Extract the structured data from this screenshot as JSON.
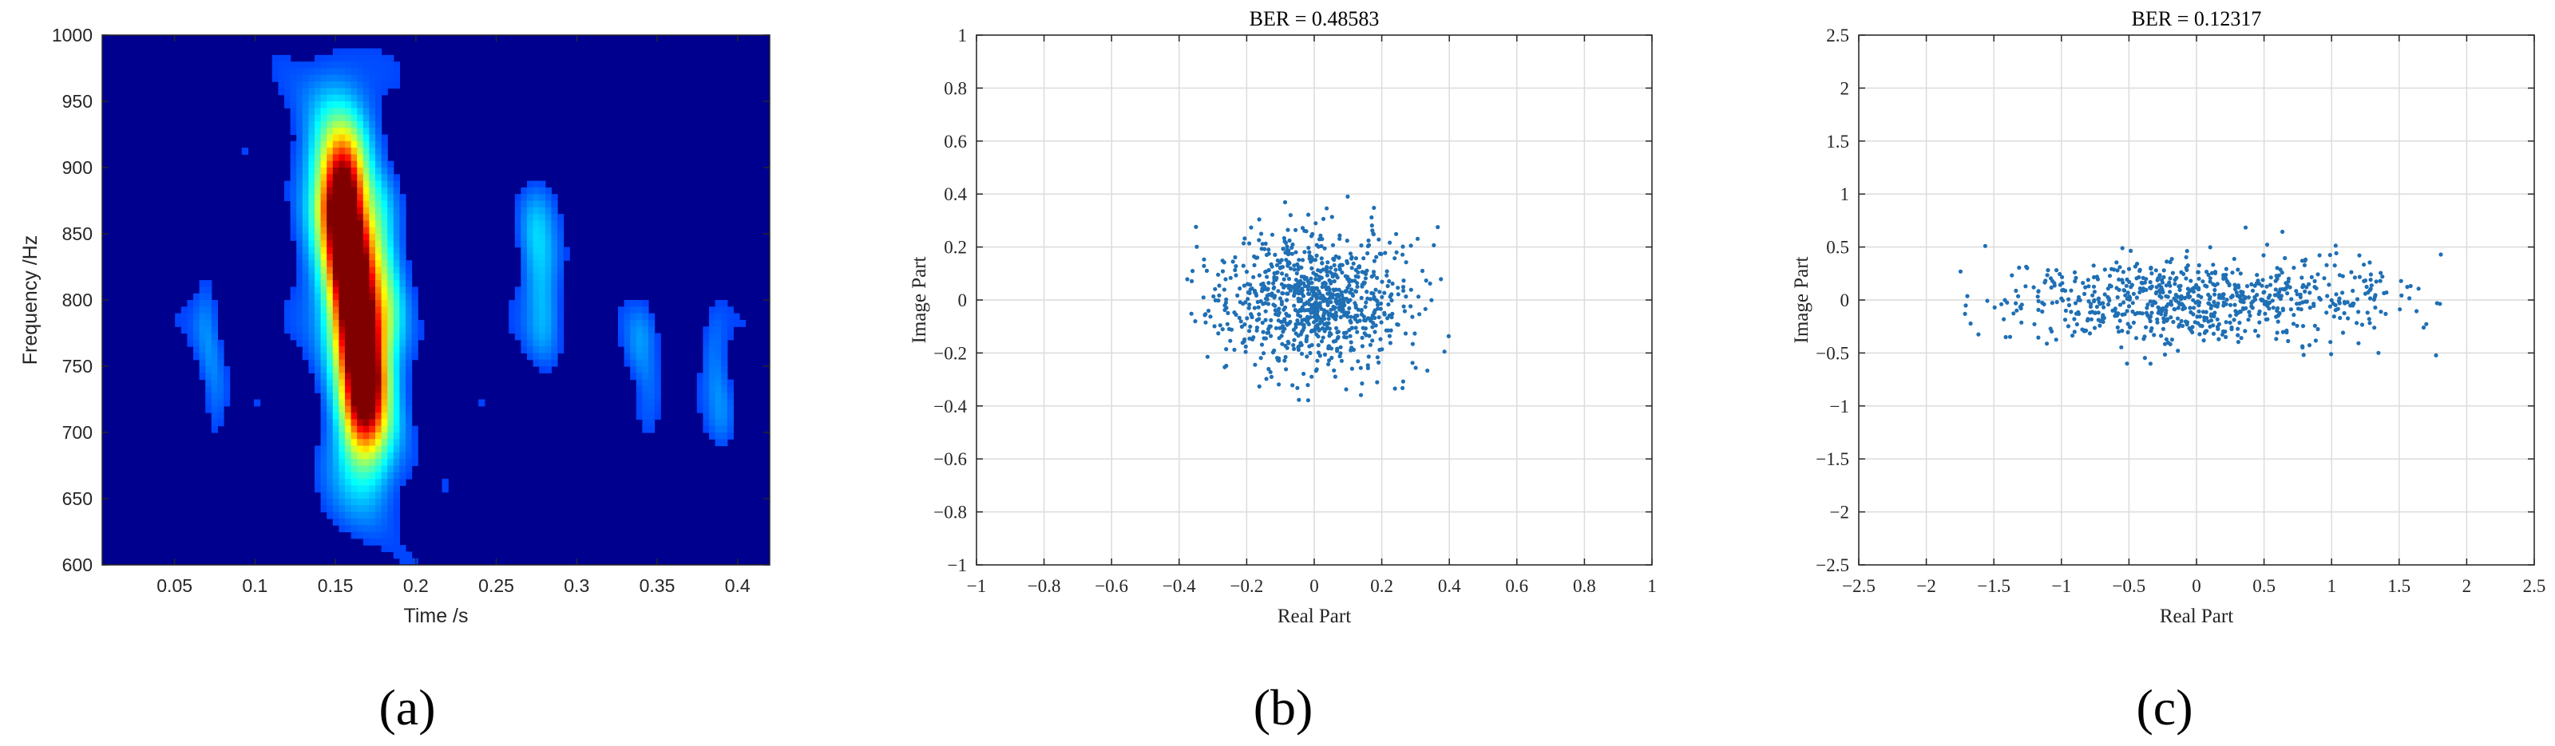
{
  "chart_data": [
    {
      "id": "a",
      "type": "heatmap",
      "panel_label": "(a)",
      "title": "",
      "xlabel": "Time /s",
      "ylabel": "Frequency /Hz",
      "xlim": [
        0.005,
        0.42
      ],
      "ylim": [
        600,
        1000
      ],
      "xticks": [
        0.05,
        0.1,
        0.15,
        0.2,
        0.25,
        0.3,
        0.35,
        0.4
      ],
      "xtick_labels": [
        "0.05",
        "0.1",
        "0.15",
        "0.2",
        "0.25",
        "0.3",
        "0.35",
        "0.4"
      ],
      "yticks": [
        600,
        650,
        700,
        750,
        800,
        850,
        900,
        950,
        1000
      ],
      "ytick_labels": [
        "600",
        "650",
        "700",
        "750",
        "800",
        "850",
        "900",
        "950",
        "1000"
      ],
      "colormap": "jet",
      "background_color": "#00008f",
      "peak": {
        "time": 0.16,
        "frequency": 810,
        "intensity": 1.0
      },
      "components": [
        {
          "t0": 0.155,
          "f0": 870,
          "t1": 0.168,
          "f1": 740,
          "width_t": 0.009,
          "width_f": 45,
          "amp": 1.0
        },
        {
          "t0": 0.15,
          "f0": 905,
          "t1": 0.17,
          "f1": 705,
          "width_t": 0.015,
          "width_f": 60,
          "amp": 0.45
        },
        {
          "t0": 0.178,
          "f0": 850,
          "t1": 0.182,
          "f1": 800,
          "width_t": 0.008,
          "width_f": 40,
          "amp": 0.22
        },
        {
          "t0": 0.275,
          "f0": 850,
          "t1": 0.28,
          "f1": 790,
          "width_t": 0.008,
          "width_f": 40,
          "amp": 0.18
        },
        {
          "t0": 0.07,
          "f0": 780,
          "t1": 0.075,
          "f1": 730,
          "width_t": 0.006,
          "width_f": 35,
          "amp": 0.12
        },
        {
          "t0": 0.34,
          "f0": 760,
          "t1": 0.345,
          "f1": 730,
          "width_t": 0.007,
          "width_f": 35,
          "amp": 0.12
        },
        {
          "t0": 0.385,
          "f0": 760,
          "t1": 0.39,
          "f1": 720,
          "width_t": 0.006,
          "width_f": 35,
          "amp": 0.1
        }
      ]
    },
    {
      "id": "b",
      "type": "scatter",
      "panel_label": "(b)",
      "title": "BER = 0.48583",
      "xlabel": "Real Part",
      "ylabel": "Image Part",
      "xlim": [
        -1,
        1
      ],
      "ylim": [
        -1,
        1
      ],
      "xticks": [
        -1,
        -0.8,
        -0.6,
        -0.4,
        -0.2,
        0,
        0.2,
        0.4,
        0.6,
        0.8,
        1
      ],
      "xtick_labels": [
        "−1",
        "−0.8",
        "−0.6",
        "−0.4",
        "−0.2",
        "0",
        "0.2",
        "0.4",
        "0.6",
        "0.8",
        "1"
      ],
      "yticks": [
        -1,
        -0.8,
        -0.6,
        -0.4,
        -0.2,
        0,
        0.2,
        0.4,
        0.6,
        0.8,
        1
      ],
      "ytick_labels": [
        "−1",
        "−0.8",
        "−0.6",
        "−0.4",
        "−0.2",
        "0",
        "0.2",
        "0.4",
        "0.6",
        "0.8",
        "1"
      ],
      "grid": true,
      "marker_color": "#1f6fb4",
      "points": {
        "count": 900,
        "center": [
          0,
          0
        ],
        "spread": [
          0.14,
          0.13
        ],
        "x_range": [
          -0.4,
          0.4
        ],
        "y_range": [
          -0.38,
          0.42
        ],
        "seed": 17
      }
    },
    {
      "id": "c",
      "type": "scatter",
      "panel_label": "(c)",
      "title": "BER = 0.12317",
      "xlabel": "Real Part",
      "ylabel": "Image Part",
      "xlim": [
        -2.5,
        2.5
      ],
      "ylim": [
        -2.5,
        2.5
      ],
      "xticks": [
        -2.5,
        -2,
        -1.5,
        -1,
        -0.5,
        0,
        0.5,
        1,
        1.5,
        2,
        2.5
      ],
      "xtick_labels": [
        "−2.5",
        "−2",
        "−1.5",
        "−1",
        "−0.5",
        "0",
        "0.5",
        "1",
        "1.5",
        "2",
        "2.5"
      ],
      "yticks": [
        -2.5,
        -2,
        -1.5,
        -1,
        -0.5,
        0,
        0.5,
        1,
        1.5,
        2,
        2.5
      ],
      "ytick_labels": [
        "−2.5",
        "−2",
        "−1.5",
        "−1",
        "−0.5",
        "0",
        "0.5",
        "1",
        "1.5",
        "2",
        "2.5"
      ],
      "grid": true,
      "marker_color": "#1f6fb4",
      "points": {
        "count": 750,
        "center": [
          0,
          0
        ],
        "spread": [
          0.75,
          0.2
        ],
        "x_range": [
          -1.9,
          1.85
        ],
        "y_range": [
          -0.85,
          0.8
        ],
        "seed": 29
      }
    }
  ]
}
